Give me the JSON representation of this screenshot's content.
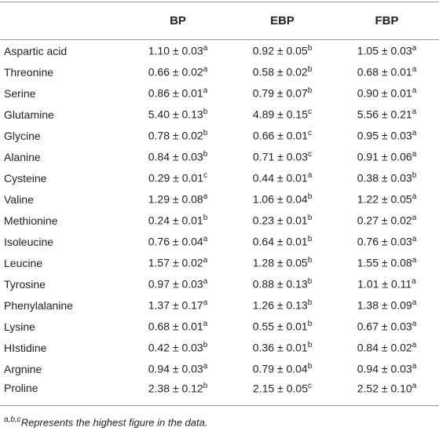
{
  "table": {
    "header": [
      "BP",
      "EBP",
      "FBP"
    ],
    "rows": [
      [
        "Aspartic acid",
        [
          "1.10 ± 0.03",
          "a"
        ],
        [
          "0.92 ± 0.05",
          "b"
        ],
        [
          "1.05 ± 0.03",
          "a"
        ]
      ],
      [
        "Threonine",
        [
          "0.66 ± 0.02",
          "a"
        ],
        [
          "0.58 ± 0.02",
          "b"
        ],
        [
          "0.68 ± 0.01",
          "a"
        ]
      ],
      [
        "Serine",
        [
          "0.86 ± 0.01",
          "a"
        ],
        [
          "0.79 ± 0.07",
          "b"
        ],
        [
          "0.90 ± 0.01",
          "a"
        ]
      ],
      [
        "Glutamine",
        [
          "5.40 ± 0.13",
          "b"
        ],
        [
          "4.89 ± 0.15",
          "c"
        ],
        [
          "5.56 ± 0.21",
          "a"
        ]
      ],
      [
        "Glycine",
        [
          "0.78 ± 0.02",
          "b"
        ],
        [
          "0.66 ± 0.01",
          "c"
        ],
        [
          "0.95 ± 0.03",
          "a"
        ]
      ],
      [
        "Alanine",
        [
          "0.84 ± 0.03",
          "b"
        ],
        [
          "0.71 ± 0.03",
          "c"
        ],
        [
          "0.91 ± 0.06",
          "a"
        ]
      ],
      [
        "Cysteine",
        [
          "0.29 ± 0.01",
          "c"
        ],
        [
          "0.44 ± 0.01",
          "a"
        ],
        [
          "0.38 ± 0.03",
          "b"
        ]
      ],
      [
        "Valine",
        [
          "1.29 ± 0.08",
          "a"
        ],
        [
          "1.06 ± 0.04",
          "b"
        ],
        [
          "1.22 ± 0.05",
          "a"
        ]
      ],
      [
        "Methionine",
        [
          "0.24 ± 0.01",
          "b"
        ],
        [
          "0.23 ± 0.01",
          "b"
        ],
        [
          "0.27 ± 0.02",
          "a"
        ]
      ],
      [
        "Isoleucine",
        [
          "0.76 ± 0.04",
          "a"
        ],
        [
          "0.64 ± 0.01",
          "b"
        ],
        [
          "0.76 ± 0.03",
          "a"
        ]
      ],
      [
        "Leucine",
        [
          "1.57 ± 0.02",
          "a"
        ],
        [
          "1.28 ± 0.05",
          "b"
        ],
        [
          "1.55 ± 0.08",
          "a"
        ]
      ],
      [
        "Tyrosine",
        [
          "0.97 ± 0.03",
          "a"
        ],
        [
          "0.88 ± 0.13",
          "b"
        ],
        [
          "1.01 ± 0.11",
          "a"
        ]
      ],
      [
        "Phenylalanine",
        [
          "1.37 ± 0.17",
          "a"
        ],
        [
          "1.26 ± 0.13",
          "b"
        ],
        [
          "1.38 ± 0.09",
          "a"
        ]
      ],
      [
        "Lysine",
        [
          "0.68 ± 0.01",
          "a"
        ],
        [
          "0.55 ± 0.01",
          "b"
        ],
        [
          "0.67 ± 0.03",
          "a"
        ]
      ],
      [
        "HIstidine",
        [
          "0.42 ± 0.03",
          "b"
        ],
        [
          "0.36 ± 0.01",
          "b"
        ],
        [
          "0.84 ± 0.02",
          "a"
        ]
      ],
      [
        "Argnine",
        [
          "0.94 ± 0.03",
          "a"
        ],
        [
          "0.79 ± 0.04",
          "b"
        ],
        [
          "0.94 ± 0.03",
          "a"
        ]
      ],
      [
        "Proline",
        [
          "2.38 ± 0.12",
          "b"
        ],
        [
          "2.15 ± 0.05",
          "c"
        ],
        [
          "2.52 ± 0.10",
          "a"
        ]
      ]
    ]
  },
  "footnote": {
    "sup": "a,b,c",
    "text": "Represents the highest figure in the data."
  }
}
